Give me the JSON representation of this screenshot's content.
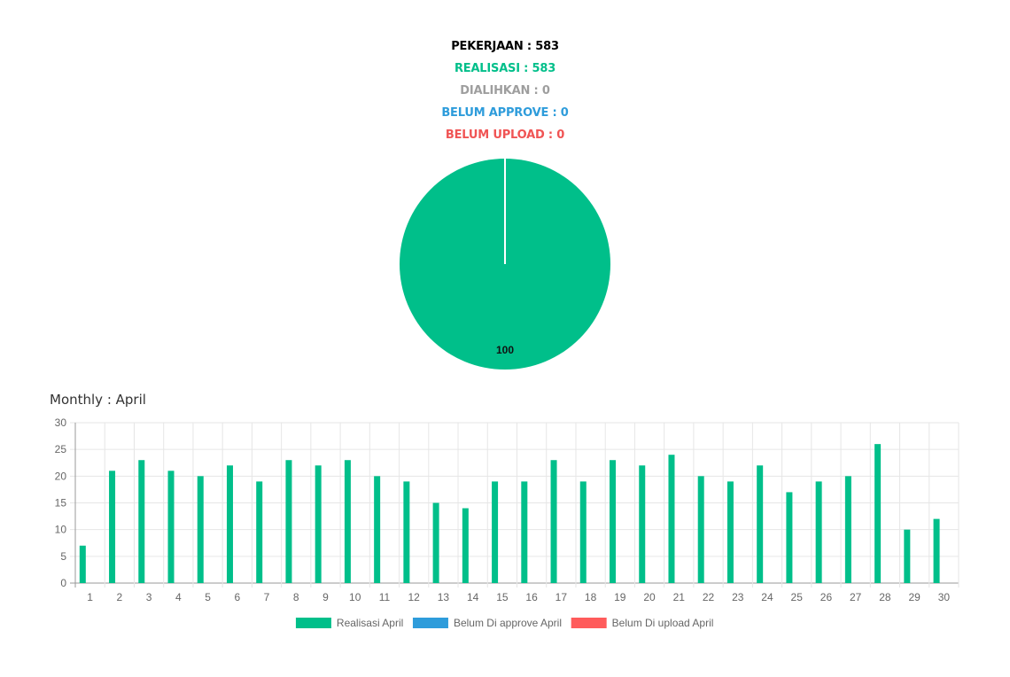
{
  "summary": {
    "pekerjaan": "PEKERJAAN : 583",
    "realisasi": "REALISASI : 583",
    "dialihkan": "DIALIHKAN : 0",
    "belum_approve": "BELUM APPROVE : 0",
    "belum_upload": "BELUM UPLOAD : 0"
  },
  "colors": {
    "pekerjaan": "#000000",
    "realisasi": "#00BF8A",
    "dialihkan": "#9E9E9E",
    "belum_approve": "#2E9CDB",
    "belum_upload": "#F05454"
  },
  "monthly_title": "Monthly : April",
  "chart_data": [
    {
      "type": "pie",
      "slices": [
        {
          "value": 100,
          "color": "#00BF8A",
          "label": "100"
        }
      ]
    },
    {
      "type": "bar",
      "categories": [
        "1",
        "2",
        "3",
        "4",
        "5",
        "6",
        "7",
        "8",
        "9",
        "10",
        "11",
        "12",
        "13",
        "14",
        "15",
        "16",
        "17",
        "18",
        "19",
        "20",
        "21",
        "22",
        "23",
        "24",
        "25",
        "26",
        "27",
        "28",
        "29",
        "30"
      ],
      "series": [
        {
          "name": "Realisasi April",
          "color": "#00BF8A",
          "values": [
            7,
            21,
            23,
            21,
            20,
            22,
            19,
            23,
            22,
            23,
            20,
            19,
            15,
            14,
            19,
            19,
            23,
            19,
            23,
            22,
            24,
            20,
            19,
            22,
            17,
            19,
            20,
            26,
            10,
            12
          ]
        },
        {
          "name": "Belum Di approve April",
          "color": "#2E9CDB",
          "values": [
            0,
            0,
            0,
            0,
            0,
            0,
            0,
            0,
            0,
            0,
            0,
            0,
            0,
            0,
            0,
            0,
            0,
            0,
            0,
            0,
            0,
            0,
            0,
            0,
            0,
            0,
            0,
            0,
            0,
            0
          ]
        },
        {
          "name": "Belum Di upload April",
          "color": "#FF5B5B",
          "values": [
            0,
            0,
            0,
            0,
            0,
            0,
            0,
            0,
            0,
            0,
            0,
            0,
            0,
            0,
            0,
            0,
            0,
            0,
            0,
            0,
            0,
            0,
            0,
            0,
            0,
            0,
            0,
            0,
            0,
            0
          ]
        }
      ],
      "ylim": [
        0,
        30
      ],
      "yticks": [
        0,
        5,
        10,
        15,
        20,
        25,
        30
      ],
      "grid": true,
      "legend": "bottom"
    }
  ]
}
